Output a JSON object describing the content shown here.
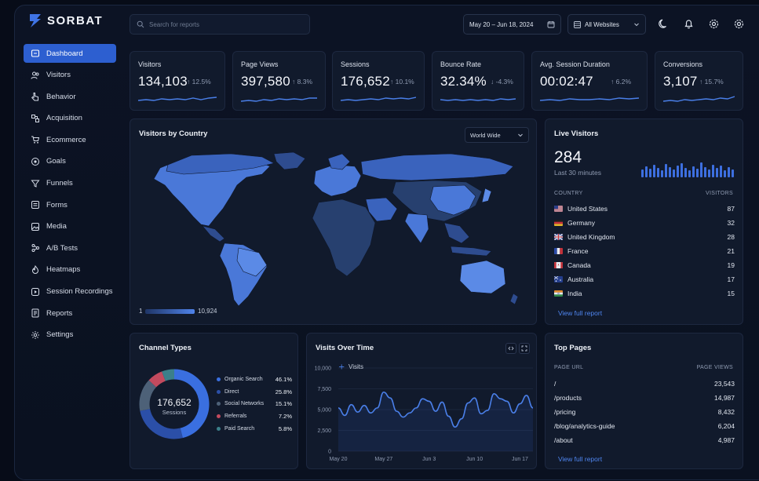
{
  "brand": {
    "name": "SORBAT"
  },
  "search": {
    "placeholder": "Search for reports"
  },
  "date_range": "May 20 – Jun 18, 2024",
  "website_filter": "All Websites",
  "nav": [
    {
      "label": "Dashboard",
      "icon": "home-icon",
      "active": true
    },
    {
      "label": "Visitors",
      "icon": "users-icon"
    },
    {
      "label": "Behavior",
      "icon": "pointer-icon"
    },
    {
      "label": "Acquisition",
      "icon": "acquisition-icon"
    },
    {
      "label": "Ecommerce",
      "icon": "cart-icon"
    },
    {
      "label": "Goals",
      "icon": "target-icon"
    },
    {
      "label": "Funnels",
      "icon": "funnel-icon"
    },
    {
      "label": "Forms",
      "icon": "forms-icon"
    },
    {
      "label": "Media",
      "icon": "media-icon"
    },
    {
      "label": "A/B Tests",
      "icon": "flask-icon"
    },
    {
      "label": "Heatmaps",
      "icon": "flame-icon"
    },
    {
      "label": "Session Recordings",
      "icon": "record-icon"
    },
    {
      "label": "Reports",
      "icon": "report-icon"
    },
    {
      "label": "Settings",
      "icon": "gear-icon"
    }
  ],
  "kpis": [
    {
      "label": "Visitors",
      "value": "134,103",
      "change": "12.5%",
      "direction": "up"
    },
    {
      "label": "Page Views",
      "value": "397,580",
      "change": "8.3%",
      "direction": "up"
    },
    {
      "label": "Sessions",
      "value": "176,652",
      "change": "10.1%",
      "direction": "up"
    },
    {
      "label": "Bounce Rate",
      "value": "32.34%",
      "change": "-4.3%",
      "direction": "down"
    },
    {
      "label": "Avg. Session Duration",
      "value": "00:02:47",
      "change": "6.2%",
      "direction": "up"
    },
    {
      "label": "Conversions",
      "value": "3,107",
      "change": "15.7%",
      "direction": "up"
    }
  ],
  "map_card": {
    "title": "Visitors by Country",
    "scope": "World Wide",
    "scale_min": "1",
    "scale_max": "10,924"
  },
  "live": {
    "title": "Live Visitors",
    "count": "284",
    "subtitle": "Last 30 minutes",
    "col_country": "COUNTRY",
    "col_visitors": "VISITORS",
    "rows": [
      {
        "country": "United States",
        "visitors": "87"
      },
      {
        "country": "Germany",
        "visitors": "32"
      },
      {
        "country": "United Kingdom",
        "visitors": "28"
      },
      {
        "country": "France",
        "visitors": "21"
      },
      {
        "country": "Canada",
        "visitors": "19"
      },
      {
        "country": "Australia",
        "visitors": "17"
      },
      {
        "country": "India",
        "visitors": "15"
      }
    ],
    "link": "View full report"
  },
  "channels": {
    "title": "Channel Types",
    "center_value": "176,652",
    "center_label": "Sessions",
    "items": [
      {
        "name": "Organic Search",
        "pct": "46.1%",
        "color": "#3a6fe0"
      },
      {
        "name": "Direct",
        "pct": "25.8%",
        "color": "#2b4fa8"
      },
      {
        "name": "Social Networks",
        "pct": "15.1%",
        "color": "#4d6178"
      },
      {
        "name": "Referrals",
        "pct": "7.2%",
        "color": "#c34a5e"
      },
      {
        "name": "Paid Search",
        "pct": "5.8%",
        "color": "#3b7f8a"
      }
    ]
  },
  "chart_data": {
    "type": "line",
    "title": "Visits Over Time",
    "series": [
      {
        "name": "Visits",
        "values": [
          5200,
          4300,
          5600,
          4700,
          5500,
          4600,
          5200,
          7100,
          6400,
          4800,
          4100,
          4600,
          5200,
          6300,
          6000,
          4800,
          5900,
          4200,
          2900,
          3900,
          5800,
          6400,
          4500,
          4900,
          6900,
          6300,
          6000,
          4600,
          5700,
          6700,
          5200
        ]
      }
    ],
    "x_ticks": [
      "May 20",
      "May 27",
      "Jun 3",
      "Jun 10",
      "Jun 17"
    ],
    "y_ticks": [
      "10,000",
      "7,500",
      "5,000",
      "2,500",
      "0"
    ],
    "ylim": [
      0,
      10000
    ]
  },
  "top_pages": {
    "title": "Top Pages",
    "col_url": "PAGE URL",
    "col_views": "PAGE VIEWS",
    "rows": [
      {
        "url": "/",
        "views": "23,543"
      },
      {
        "url": "/products",
        "views": "14,987"
      },
      {
        "url": "/pricing",
        "views": "8,432"
      },
      {
        "url": "/blog/analytics-guide",
        "views": "6,204"
      },
      {
        "url": "/about",
        "views": "4,987"
      }
    ],
    "link": "View full report"
  },
  "colors": {
    "accent": "#2d5fd0",
    "panel": "#111a2c",
    "background": "#070c18"
  }
}
